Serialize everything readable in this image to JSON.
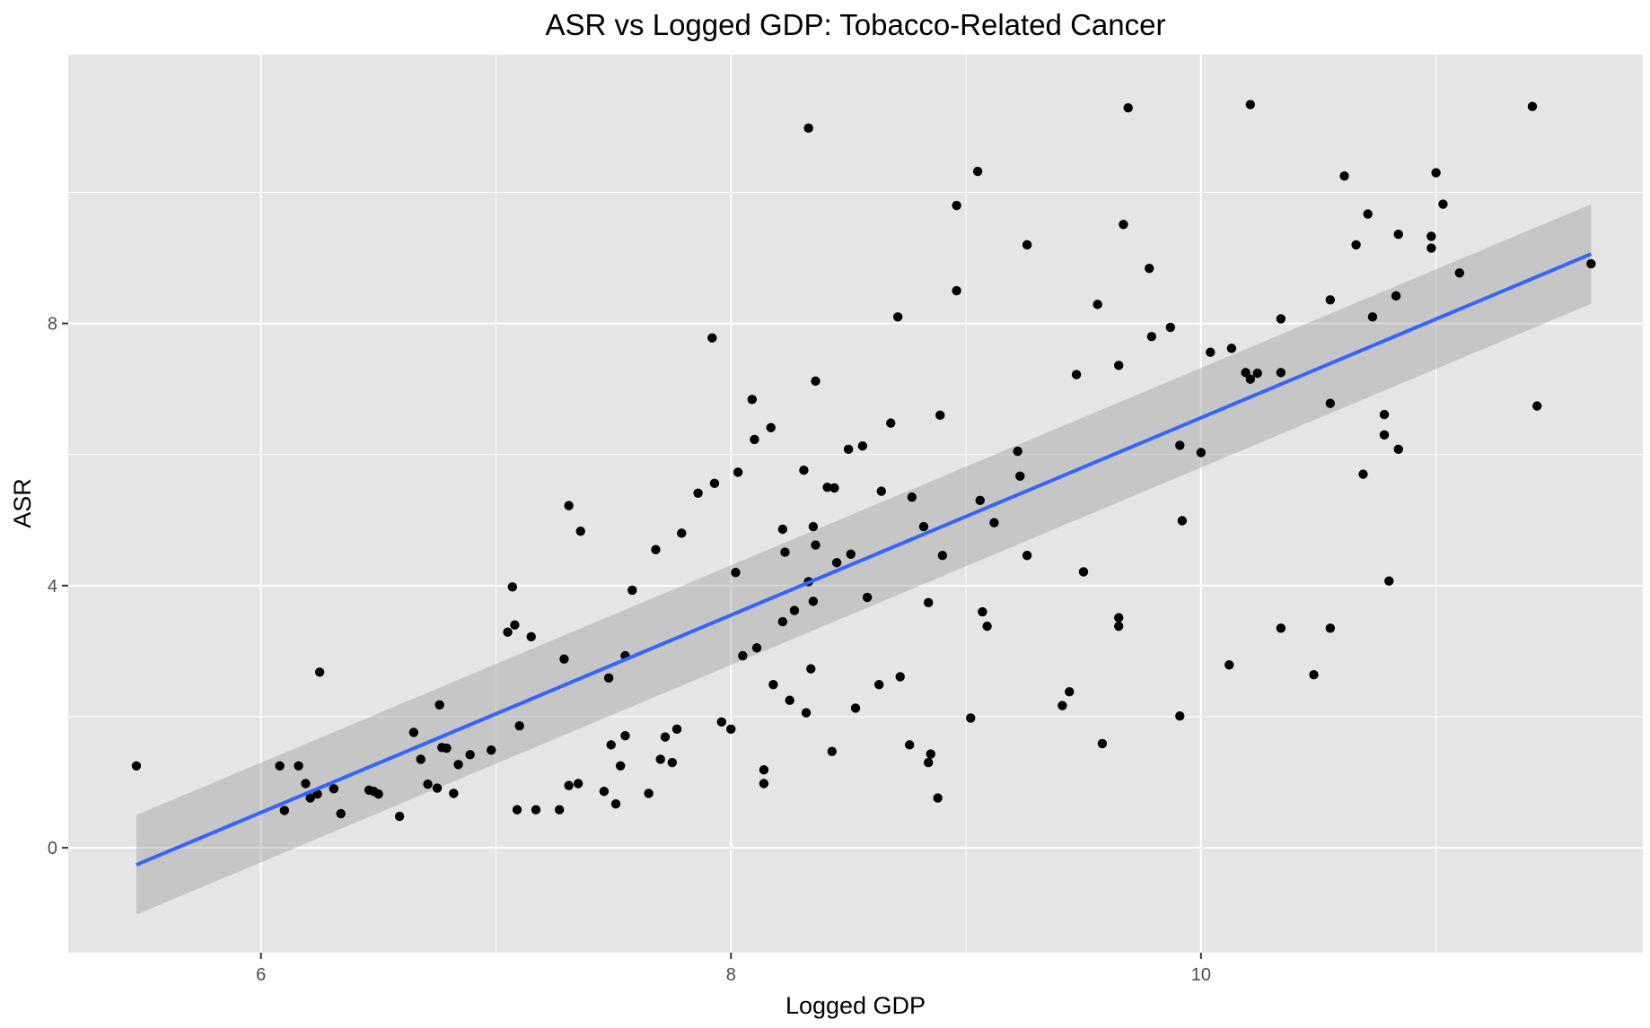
{
  "chart_data": {
    "type": "scatter",
    "title": "ASR vs Logged GDP: Tobacco-Related Cancer",
    "xlabel": "Logged GDP",
    "ylabel": "ASR",
    "xlim": [
      5.18,
      11.88
    ],
    "ylim": [
      -1.6,
      12.1
    ],
    "x_ticks": [
      6,
      8,
      10
    ],
    "y_ticks": [
      0,
      4,
      8
    ],
    "grid": true,
    "legend": "none",
    "colors": {
      "panel_background": "#e5e5e5",
      "grid": "#ffffff",
      "points": "#000000",
      "trend_line": "#3366ff",
      "confidence_band": "#999999"
    },
    "trend_line": {
      "x": [
        5.47,
        11.66
      ],
      "y": [
        -0.26,
        9.06
      ],
      "ci_lower": [
        -1.02,
        8.3
      ],
      "ci_upper": [
        0.5,
        9.82
      ]
    },
    "points": [
      [
        5.47,
        1.25
      ],
      [
        6.08,
        1.25
      ],
      [
        6.1,
        0.57
      ],
      [
        6.16,
        1.25
      ],
      [
        6.19,
        0.98
      ],
      [
        6.21,
        0.76
      ],
      [
        6.24,
        0.82
      ],
      [
        6.25,
        2.68
      ],
      [
        6.31,
        0.9
      ],
      [
        6.34,
        0.52
      ],
      [
        6.46,
        0.88
      ],
      [
        6.48,
        0.86
      ],
      [
        6.5,
        0.82
      ],
      [
        6.59,
        0.48
      ],
      [
        6.65,
        1.76
      ],
      [
        6.68,
        1.35
      ],
      [
        6.71,
        0.97
      ],
      [
        6.75,
        0.91
      ],
      [
        6.76,
        2.18
      ],
      [
        6.77,
        1.53
      ],
      [
        6.79,
        1.52
      ],
      [
        6.82,
        0.83
      ],
      [
        6.84,
        1.27
      ],
      [
        6.89,
        1.42
      ],
      [
        6.98,
        1.49
      ],
      [
        7.05,
        3.29
      ],
      [
        7.07,
        3.98
      ],
      [
        7.08,
        3.4
      ],
      [
        7.09,
        0.58
      ],
      [
        7.1,
        1.86
      ],
      [
        7.15,
        3.22
      ],
      [
        7.17,
        0.58
      ],
      [
        7.27,
        0.58
      ],
      [
        7.29,
        2.88
      ],
      [
        7.31,
        5.22
      ],
      [
        7.31,
        0.95
      ],
      [
        7.35,
        0.98
      ],
      [
        7.36,
        4.83
      ],
      [
        7.46,
        0.86
      ],
      [
        7.48,
        2.59
      ],
      [
        7.49,
        1.57
      ],
      [
        7.51,
        0.67
      ],
      [
        7.53,
        1.25
      ],
      [
        7.55,
        1.71
      ],
      [
        7.55,
        2.93
      ],
      [
        7.58,
        3.93
      ],
      [
        7.65,
        0.83
      ],
      [
        7.68,
        4.55
      ],
      [
        7.7,
        1.35
      ],
      [
        7.72,
        1.69
      ],
      [
        7.75,
        1.3
      ],
      [
        7.77,
        1.81
      ],
      [
        7.79,
        4.8
      ],
      [
        7.86,
        5.41
      ],
      [
        7.92,
        7.78
      ],
      [
        7.93,
        5.56
      ],
      [
        7.96,
        1.92
      ],
      [
        8.0,
        1.81
      ],
      [
        8.02,
        4.2
      ],
      [
        8.03,
        5.73
      ],
      [
        8.05,
        2.93
      ],
      [
        8.09,
        6.84
      ],
      [
        8.1,
        6.23
      ],
      [
        8.11,
        3.05
      ],
      [
        8.14,
        0.98
      ],
      [
        8.14,
        1.19
      ],
      [
        8.17,
        6.41
      ],
      [
        8.18,
        2.49
      ],
      [
        8.22,
        4.86
      ],
      [
        8.22,
        3.45
      ],
      [
        8.23,
        4.51
      ],
      [
        8.25,
        2.25
      ],
      [
        8.27,
        3.62
      ],
      [
        8.31,
        5.76
      ],
      [
        8.32,
        2.06
      ],
      [
        8.33,
        4.06
      ],
      [
        8.33,
        10.98
      ],
      [
        8.34,
        2.73
      ],
      [
        8.35,
        3.76
      ],
      [
        8.35,
        4.9
      ],
      [
        8.36,
        7.12
      ],
      [
        8.36,
        4.62
      ],
      [
        8.41,
        5.5
      ],
      [
        8.43,
        1.47
      ],
      [
        8.44,
        5.49
      ],
      [
        8.45,
        4.35
      ],
      [
        8.5,
        6.08
      ],
      [
        8.51,
        4.48
      ],
      [
        8.53,
        2.13
      ],
      [
        8.56,
        6.13
      ],
      [
        8.58,
        3.82
      ],
      [
        8.63,
        2.49
      ],
      [
        8.64,
        5.44
      ],
      [
        8.68,
        6.48
      ],
      [
        8.71,
        8.1
      ],
      [
        8.72,
        2.61
      ],
      [
        8.76,
        1.57
      ],
      [
        8.77,
        5.35
      ],
      [
        8.82,
        4.9
      ],
      [
        8.84,
        3.74
      ],
      [
        8.84,
        1.3
      ],
      [
        8.85,
        1.43
      ],
      [
        8.88,
        0.76
      ],
      [
        8.89,
        6.6
      ],
      [
        8.9,
        4.46
      ],
      [
        8.96,
        9.8
      ],
      [
        8.96,
        8.5
      ],
      [
        9.02,
        1.98
      ],
      [
        9.05,
        10.32
      ],
      [
        9.06,
        5.3
      ],
      [
        9.07,
        3.6
      ],
      [
        9.09,
        3.38
      ],
      [
        9.12,
        4.96
      ],
      [
        9.22,
        6.05
      ],
      [
        9.23,
        5.67
      ],
      [
        9.26,
        9.2
      ],
      [
        9.26,
        4.46
      ],
      [
        9.41,
        2.17
      ],
      [
        9.44,
        2.38
      ],
      [
        9.47,
        7.22
      ],
      [
        9.5,
        4.21
      ],
      [
        9.56,
        8.29
      ],
      [
        9.58,
        1.59
      ],
      [
        9.65,
        7.36
      ],
      [
        9.65,
        3.51
      ],
      [
        9.65,
        3.38
      ],
      [
        9.67,
        9.51
      ],
      [
        9.69,
        11.29
      ],
      [
        9.78,
        8.84
      ],
      [
        9.79,
        7.8
      ],
      [
        9.87,
        7.94
      ],
      [
        9.91,
        6.14
      ],
      [
        9.91,
        2.01
      ],
      [
        9.92,
        4.99
      ],
      [
        10.0,
        6.03
      ],
      [
        10.04,
        7.56
      ],
      [
        10.12,
        2.79
      ],
      [
        10.13,
        7.62
      ],
      [
        10.19,
        7.25
      ],
      [
        10.21,
        7.15
      ],
      [
        10.21,
        11.34
      ],
      [
        10.24,
        7.24
      ],
      [
        10.34,
        7.25
      ],
      [
        10.34,
        8.07
      ],
      [
        10.34,
        3.35
      ],
      [
        10.48,
        2.64
      ],
      [
        10.55,
        8.36
      ],
      [
        10.55,
        6.78
      ],
      [
        10.55,
        3.35
      ],
      [
        10.61,
        10.25
      ],
      [
        10.66,
        9.2
      ],
      [
        10.69,
        5.7
      ],
      [
        10.71,
        9.67
      ],
      [
        10.73,
        8.1
      ],
      [
        10.78,
        6.61
      ],
      [
        10.78,
        6.3
      ],
      [
        10.8,
        4.07
      ],
      [
        10.83,
        8.42
      ],
      [
        10.84,
        6.08
      ],
      [
        10.84,
        9.36
      ],
      [
        10.98,
        9.15
      ],
      [
        10.98,
        9.33
      ],
      [
        11.0,
        10.3
      ],
      [
        11.03,
        9.82
      ],
      [
        11.1,
        8.77
      ],
      [
        11.41,
        11.31
      ],
      [
        11.43,
        6.74
      ],
      [
        11.66,
        8.91
      ]
    ]
  }
}
